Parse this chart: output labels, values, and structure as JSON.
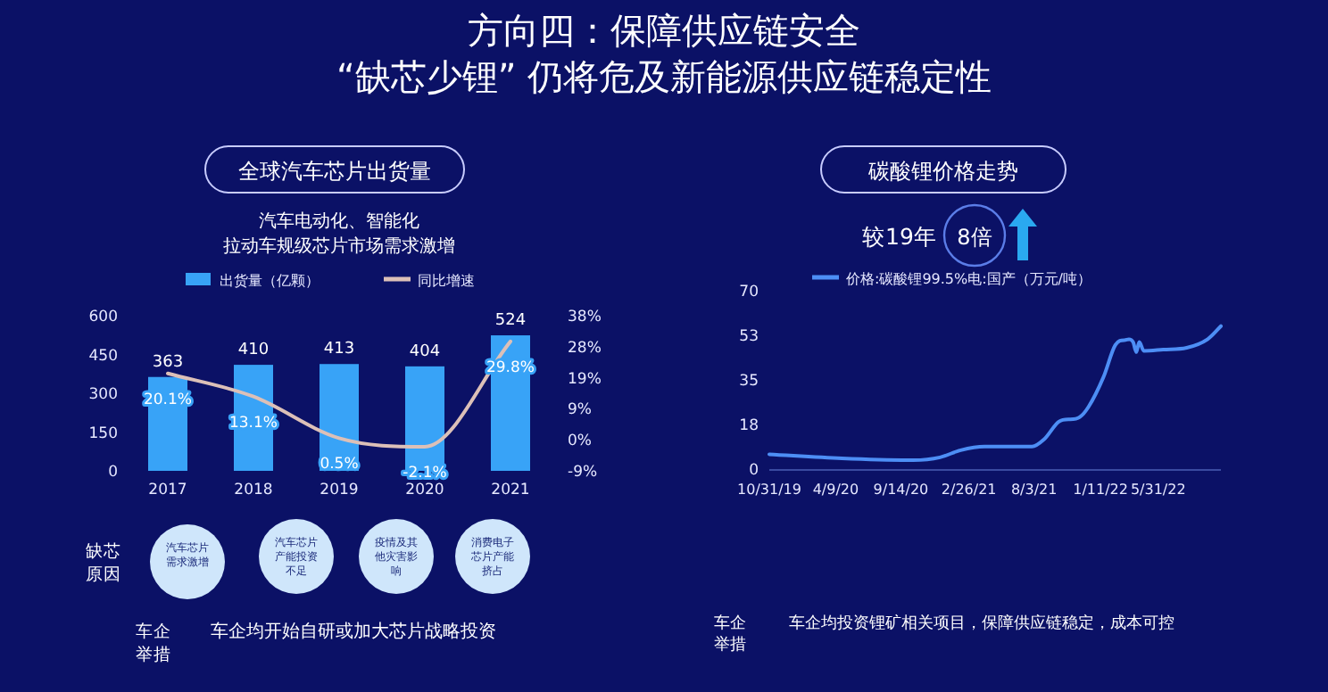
{
  "chart_data": [
    {
      "type": "bar",
      "title": "全球汽车芯片出货量",
      "subtitle": "汽车电动化、智能化拉动车规级芯片市场需求激增",
      "annotations": [
        "方向四：保障供应链安全",
        "“缺芯少锂” 仍将危及新能源供应链稳定性",
        "缺芯原因",
        "汽车芯片需求激增",
        "汽车芯片产能投资不足",
        "疫情及其他灾害影响",
        "消费电子芯片产能挤占",
        "车企举措",
        "车企均开始自研或加大芯片战略投资"
      ],
      "categories": [
        "2017",
        "2018",
        "2019",
        "2020",
        "2021"
      ],
      "series": [
        {
          "name": "出货量（亿颗）",
          "type": "bar",
          "color": "#38a3f7",
          "values": [
            363,
            410,
            413,
            404,
            524
          ],
          "value_labels": [
            "363",
            "410",
            "413",
            "404",
            "524"
          ]
        },
        {
          "name": "同比增速",
          "type": "line",
          "axis": "y2",
          "color": "#dcc0b8",
          "values": [
            20.1,
            13.1,
            0.5,
            -2.1,
            29.8
          ],
          "value_labels": [
            "20.1%",
            "13.1%",
            "0.5%",
            "-2.1%",
            "29.8%"
          ]
        }
      ],
      "ylim": [
        0,
        600
      ],
      "yticks": [
        0,
        150,
        300,
        450,
        600
      ],
      "y2lim": [
        -9.4,
        37.6
      ],
      "y2ticks": [
        {
          "value": -9.4,
          "label": "-9%"
        },
        {
          "value": 0,
          "label": "0%"
        },
        {
          "value": 9.4,
          "label": "9%"
        },
        {
          "value": 18.8,
          "label": "19%"
        },
        {
          "value": 28.2,
          "label": "28%"
        },
        {
          "value": 37.6,
          "label": "38%"
        }
      ],
      "legend": "top"
    },
    {
      "type": "line",
      "title": "碳酸锂价格走势",
      "annotations": [
        "较19年",
        "8倍",
        "车企举措",
        "车企均投资锂矿相关项目，保障供应链稳定，成本可控"
      ],
      "x": [
        "2019-10-31",
        "2020-04-24",
        "2020-10-14",
        "2020-12-18",
        "2021-02-06",
        "2021-04-05",
        "2021-07-29",
        "2021-08-27",
        "2021-10-02",
        "2021-11-22",
        "2021-12-13",
        "2022-01-18",
        "2022-02-16",
        "2022-03-10",
        "2022-03-31",
        "2022-04-08",
        "2022-04-15",
        "2022-04-26",
        "2022-06-12",
        "2022-08-08",
        "2022-09-28",
        "2022-10-30"
      ],
      "series": [
        {
          "name": "价格:碳酸锂99.5%电:国产（万元/吨）",
          "color": "#4d8ef5",
          "values": [
            5.8,
            4.2,
            3.5,
            4.6,
            7.4,
            8.8,
            8.8,
            11.6,
            18.6,
            20.4,
            24.4,
            36,
            48.7,
            50.6,
            49.9,
            45.9,
            49.9,
            46.4,
            46.9,
            47.6,
            51,
            56.1
          ]
        }
      ],
      "xticks": [
        {
          "value": "2019-10-31",
          "label": "10/31/19"
        },
        {
          "value": "2020-04-09",
          "label": "4/9/20"
        },
        {
          "value": "2020-09-14",
          "label": "9/14/20"
        },
        {
          "value": "2021-02-26",
          "label": "2/26/21"
        },
        {
          "value": "2021-08-03",
          "label": "8/3/21"
        },
        {
          "value": "2022-01-11",
          "label": "1/11/22"
        },
        {
          "value": "2022-05-31",
          "label": "5/31/22"
        }
      ],
      "xlim": [
        "2019-10-31",
        "2022-10-30"
      ],
      "ylim": [
        0,
        70
      ],
      "yticks": [
        0,
        {
          "value": 17.5,
          "label": "18"
        },
        35,
        {
          "value": 52.5,
          "label": "53"
        },
        70
      ],
      "legend": "top"
    }
  ]
}
